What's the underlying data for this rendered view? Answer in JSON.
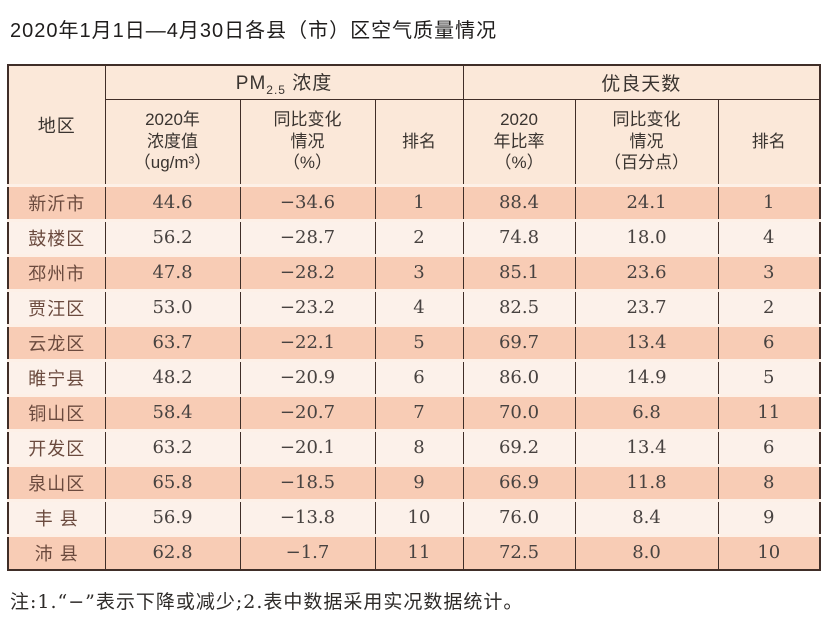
{
  "page": {
    "title": "2020年1月1日—4月30日各县（市）区空气质量情况",
    "note": "注:1.“−”表示下降或减少;2.表中数据采用实况数据统计。"
  },
  "colors": {
    "border": "#402e28",
    "header_bg": "#fbe8d9",
    "row_odd_bg": "#f8ccb5",
    "row_even_bg": "#fcf1ea",
    "row_gap": "#fdf0e7",
    "region_text": "#6b4a3e",
    "number_text": "#474240"
  },
  "table": {
    "corner_header": "地区",
    "groups": {
      "pm25": {
        "prefix": "PM",
        "sub": "2.5",
        "suffix": " 浓度"
      },
      "good_days": {
        "label": "优良天数"
      }
    },
    "subheaders": [
      "2020年\n浓度值\n（ug/m³）",
      "同比变化\n情况\n（%）",
      "排名",
      "2020\n年比率\n（%）",
      "同比变化\n情况\n（百分点）",
      "排名"
    ],
    "rows": [
      [
        "新沂市",
        "44.6",
        "−34.6",
        "1",
        "88.4",
        "24.1",
        "1"
      ],
      [
        "鼓楼区",
        "56.2",
        "−28.7",
        "2",
        "74.8",
        "18.0",
        "4"
      ],
      [
        "邳州市",
        "47.8",
        "−28.2",
        "3",
        "85.1",
        "23.6",
        "3"
      ],
      [
        "贾汪区",
        "53.0",
        "−23.2",
        "4",
        "82.5",
        "23.7",
        "2"
      ],
      [
        "云龙区",
        "63.7",
        "−22.1",
        "5",
        "69.7",
        "13.4",
        "6"
      ],
      [
        "睢宁县",
        "48.2",
        "−20.9",
        "6",
        "86.0",
        "14.9",
        "5"
      ],
      [
        "铜山区",
        "58.4",
        "−20.7",
        "7",
        "70.0",
        "6.8",
        "11"
      ],
      [
        "开发区",
        "63.2",
        "−20.1",
        "8",
        "69.2",
        "13.4",
        "6"
      ],
      [
        "泉山区",
        "65.8",
        "−18.5",
        "9",
        "66.9",
        "11.8",
        "8"
      ],
      [
        "丰 县",
        "56.9",
        "−13.8",
        "10",
        "76.0",
        "8.4",
        "9"
      ],
      [
        "沛 县",
        "62.8",
        "−1.7",
        "11",
        "72.5",
        "8.0",
        "10"
      ]
    ]
  }
}
